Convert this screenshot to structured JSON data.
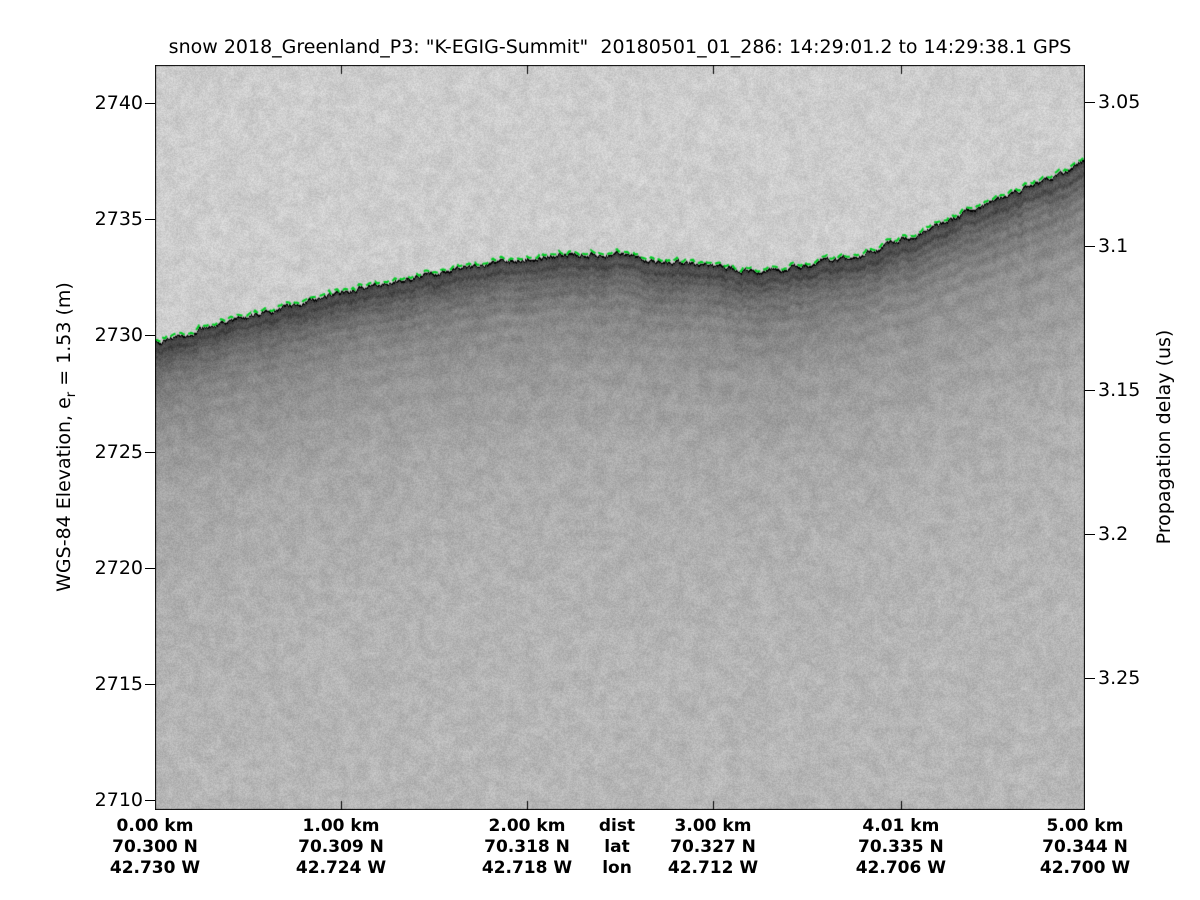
{
  "title": "snow 2018_Greenland_P3: \"K-EGIG-Summit\"  20180501_01_286: 14:29:01.2 to 14:29:38.1 GPS",
  "axes": {
    "left": {
      "label_prefix": "WGS-84 Elevation, e",
      "label_sub": "r",
      "label_suffix": " = 1.53 (m)",
      "ticks": [
        2740,
        2735,
        2730,
        2725,
        2720,
        2715,
        2710
      ]
    },
    "right": {
      "label": "Propagation delay (us)",
      "ticks": [
        3.05,
        3.1,
        3.15,
        3.2,
        3.25
      ]
    },
    "bottom": {
      "row_headers": {
        "dist": "dist",
        "lat": "lat",
        "lon": "lon"
      },
      "columns": [
        {
          "km": 0,
          "dist": "0.00 km",
          "lat": "70.300 N",
          "lon": "42.730 W"
        },
        {
          "km": 1,
          "dist": "1.00 km",
          "lat": "70.309 N",
          "lon": "42.724 W"
        },
        {
          "km": 2,
          "dist": "2.00 km",
          "lat": "70.318 N",
          "lon": "42.718 W"
        },
        {
          "km": 3,
          "dist": "3.00 km",
          "lat": "70.327 N",
          "lon": "42.712 W"
        },
        {
          "km": 4.01,
          "dist": "4.01 km",
          "lat": "70.335 N",
          "lon": "42.706 W"
        },
        {
          "km": 5,
          "dist": "5.00 km",
          "lat": "70.344 N",
          "lon": "42.700 W"
        }
      ]
    }
  },
  "chart_data": {
    "type": "heatmap",
    "description": "Airborne snow-radar echogram (grayscale backscatter) versus along-track distance and WGS-84 elevation; picked air/snow surface drawn as a green dashed line with internal firn layers fading with depth.",
    "title": "snow 2018_Greenland_P3: \"K-EGIG-Summit\"  20180501_01_286: 14:29:01.2 to 14:29:38.1 GPS",
    "x_axis": {
      "range_km": [
        0,
        5
      ],
      "tick_km": [
        0,
        1,
        2,
        3,
        4.01,
        5
      ],
      "tick_labels_dist": [
        "0.00 km",
        "1.00 km",
        "2.00 km",
        "3.00 km",
        "4.01 km",
        "5.00 km"
      ],
      "tick_labels_lat": [
        "70.300 N",
        "70.309 N",
        "70.318 N",
        "70.327 N",
        "70.335 N",
        "70.344 N"
      ],
      "tick_labels_lon": [
        "42.730 W",
        "42.724 W",
        "42.718 W",
        "42.712 W",
        "42.706 W",
        "42.700 W"
      ]
    },
    "left_axis": {
      "label": "WGS-84 Elevation, e_r = 1.53 (m)",
      "ticks": [
        2740,
        2735,
        2730,
        2725,
        2720,
        2715,
        2710
      ],
      "top_value": 2741.64,
      "bottom_value": 2709.57
    },
    "right_axis": {
      "label": "Propagation delay (us)",
      "ticks": [
        3.05,
        3.1,
        3.15,
        3.2,
        3.25
      ],
      "top_value": 3.037,
      "bottom_value": 3.296
    },
    "surface_pick": {
      "color": "#00cc22",
      "style": "dashed",
      "x_km": [
        0,
        0.25,
        0.5,
        0.75,
        1.0,
        1.25,
        1.5,
        1.75,
        2.0,
        2.25,
        2.5,
        2.75,
        3.0,
        3.25,
        3.5,
        3.75,
        4.0,
        4.25,
        4.5,
        4.75,
        5.0
      ],
      "elevation_m": [
        2729.75,
        2730.3,
        2730.85,
        2731.35,
        2731.85,
        2732.3,
        2732.7,
        2733.05,
        2733.35,
        2733.55,
        2733.5,
        2733.2,
        2732.95,
        2732.8,
        2733.0,
        2733.4,
        2734.1,
        2734.9,
        2735.75,
        2736.6,
        2737.55
      ]
    },
    "shading": {
      "above_surface_gray": "#cdcdcd",
      "surface_band_gray": "#424242",
      "deep_gray": "#b2b2b2",
      "noise_amplitude": 13
    },
    "internal_layers": [
      {
        "o": 12,
        "s": 26,
        "w": 3
      },
      {
        "o": 20,
        "s": 20,
        "w": 3
      },
      {
        "o": 28,
        "s": 15,
        "w": 3.5
      },
      {
        "o": 38,
        "s": 17,
        "w": 4
      },
      {
        "o": 50,
        "s": 13,
        "w": 4.5
      },
      {
        "o": 64,
        "s": 11,
        "w": 5
      },
      {
        "o": 80,
        "s": 9,
        "w": 6
      },
      {
        "o": 100,
        "s": 7,
        "w": 7
      },
      {
        "o": 125,
        "s": 5.5,
        "w": 8
      },
      {
        "o": 155,
        "s": 4,
        "w": 9
      }
    ]
  },
  "colors": {
    "figure_bg": "#ffffff",
    "axis": "#000000",
    "text": "#000000",
    "surface_line": "#00cc22"
  }
}
